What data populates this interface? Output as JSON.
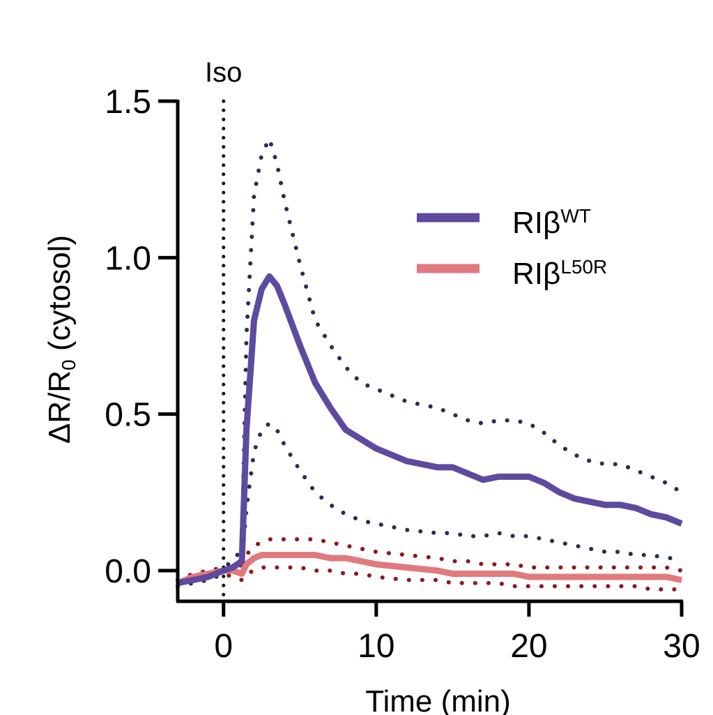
{
  "chart_data": {
    "type": "line",
    "title": "",
    "xlabel": "Time (min)",
    "ylabel": "ΔR/R",
    "ylabel_sub": "0",
    "ylabel_suffix": " (cytosol)",
    "xlim": [
      -3,
      30
    ],
    "ylim": [
      -0.1,
      1.5
    ],
    "xticks": [
      0,
      10,
      20,
      30
    ],
    "xtick_labels": [
      "0",
      "10",
      "20",
      "30"
    ],
    "yticks": [
      0.0,
      0.5,
      1.0,
      1.5
    ],
    "ytick_labels": [
      "0.0",
      "0.5",
      "1.0",
      "1.5"
    ],
    "annotation": {
      "label": "Iso",
      "x": 0
    },
    "legend_position": "top-right",
    "series": [
      {
        "name": "RIβ",
        "superscript": "WT",
        "color": "#5e4a9e",
        "band_color": "#2a2d55",
        "x": [
          -3,
          -2,
          -1,
          0,
          0.6,
          1.2,
          1.5,
          2,
          2.5,
          3,
          3.5,
          4,
          5,
          6,
          7,
          8,
          9,
          10,
          12,
          14,
          15,
          16,
          17,
          18,
          19,
          20,
          21,
          22,
          23,
          24,
          25,
          26,
          27,
          28,
          29,
          30
        ],
        "mean": [
          -0.04,
          -0.03,
          -0.02,
          0.0,
          0.01,
          0.03,
          0.45,
          0.8,
          0.9,
          0.94,
          0.91,
          0.85,
          0.72,
          0.6,
          0.52,
          0.45,
          0.42,
          0.39,
          0.35,
          0.33,
          0.33,
          0.31,
          0.29,
          0.3,
          0.3,
          0.3,
          0.28,
          0.25,
          0.23,
          0.22,
          0.21,
          0.21,
          0.2,
          0.18,
          0.17,
          0.15
        ],
        "upper": [
          -0.03,
          -0.02,
          -0.01,
          0.01,
          0.03,
          0.07,
          0.75,
          1.2,
          1.33,
          1.38,
          1.3,
          1.18,
          0.98,
          0.8,
          0.72,
          0.65,
          0.6,
          0.58,
          0.54,
          0.52,
          0.5,
          0.48,
          0.47,
          0.48,
          0.48,
          0.47,
          0.44,
          0.4,
          0.37,
          0.35,
          0.34,
          0.34,
          0.32,
          0.3,
          0.28,
          0.25
        ],
        "lower": [
          -0.05,
          -0.04,
          -0.03,
          -0.01,
          0.0,
          0.02,
          0.2,
          0.38,
          0.45,
          0.47,
          0.45,
          0.4,
          0.32,
          0.25,
          0.21,
          0.18,
          0.16,
          0.15,
          0.13,
          0.12,
          0.12,
          0.11,
          0.11,
          0.12,
          0.11,
          0.11,
          0.1,
          0.09,
          0.08,
          0.07,
          0.06,
          0.06,
          0.05,
          0.05,
          0.04,
          0.04
        ]
      },
      {
        "name": "RIβ",
        "superscript": "L50R",
        "color": "#e07a7e",
        "band_color": "#8b1a1a",
        "x": [
          -3,
          -2,
          -1,
          0,
          0.6,
          1.2,
          1.5,
          2,
          2.5,
          3,
          3.5,
          4,
          5,
          6,
          7,
          8,
          9,
          10,
          12,
          14,
          15,
          16,
          17,
          18,
          19,
          20,
          21,
          22,
          23,
          24,
          25,
          26,
          27,
          28,
          29,
          30
        ],
        "mean": [
          -0.04,
          -0.02,
          -0.01,
          0.0,
          0.0,
          -0.01,
          0.02,
          0.04,
          0.05,
          0.05,
          0.05,
          0.05,
          0.05,
          0.05,
          0.04,
          0.04,
          0.03,
          0.02,
          0.01,
          0.0,
          -0.01,
          -0.01,
          -0.01,
          -0.01,
          -0.01,
          -0.02,
          -0.02,
          -0.02,
          -0.02,
          -0.02,
          -0.02,
          -0.02,
          -0.02,
          -0.02,
          -0.02,
          -0.03
        ],
        "upper": [
          -0.03,
          -0.01,
          0.0,
          0.01,
          0.01,
          0.02,
          0.05,
          0.08,
          0.09,
          0.1,
          0.1,
          0.1,
          0.1,
          0.1,
          0.09,
          0.08,
          0.07,
          0.06,
          0.05,
          0.04,
          0.03,
          0.03,
          0.02,
          0.02,
          0.02,
          0.01,
          0.01,
          0.01,
          0.01,
          0.01,
          0.01,
          0.01,
          0.01,
          0.01,
          0.01,
          0.0
        ],
        "lower": [
          -0.05,
          -0.03,
          -0.02,
          -0.01,
          -0.02,
          -0.03,
          -0.01,
          0.0,
          0.01,
          0.01,
          0.01,
          0.01,
          0.01,
          0.0,
          0.0,
          -0.01,
          -0.01,
          -0.02,
          -0.03,
          -0.03,
          -0.04,
          -0.04,
          -0.04,
          -0.04,
          -0.05,
          -0.05,
          -0.05,
          -0.05,
          -0.05,
          -0.05,
          -0.05,
          -0.05,
          -0.05,
          -0.06,
          -0.06,
          -0.06
        ]
      }
    ]
  }
}
